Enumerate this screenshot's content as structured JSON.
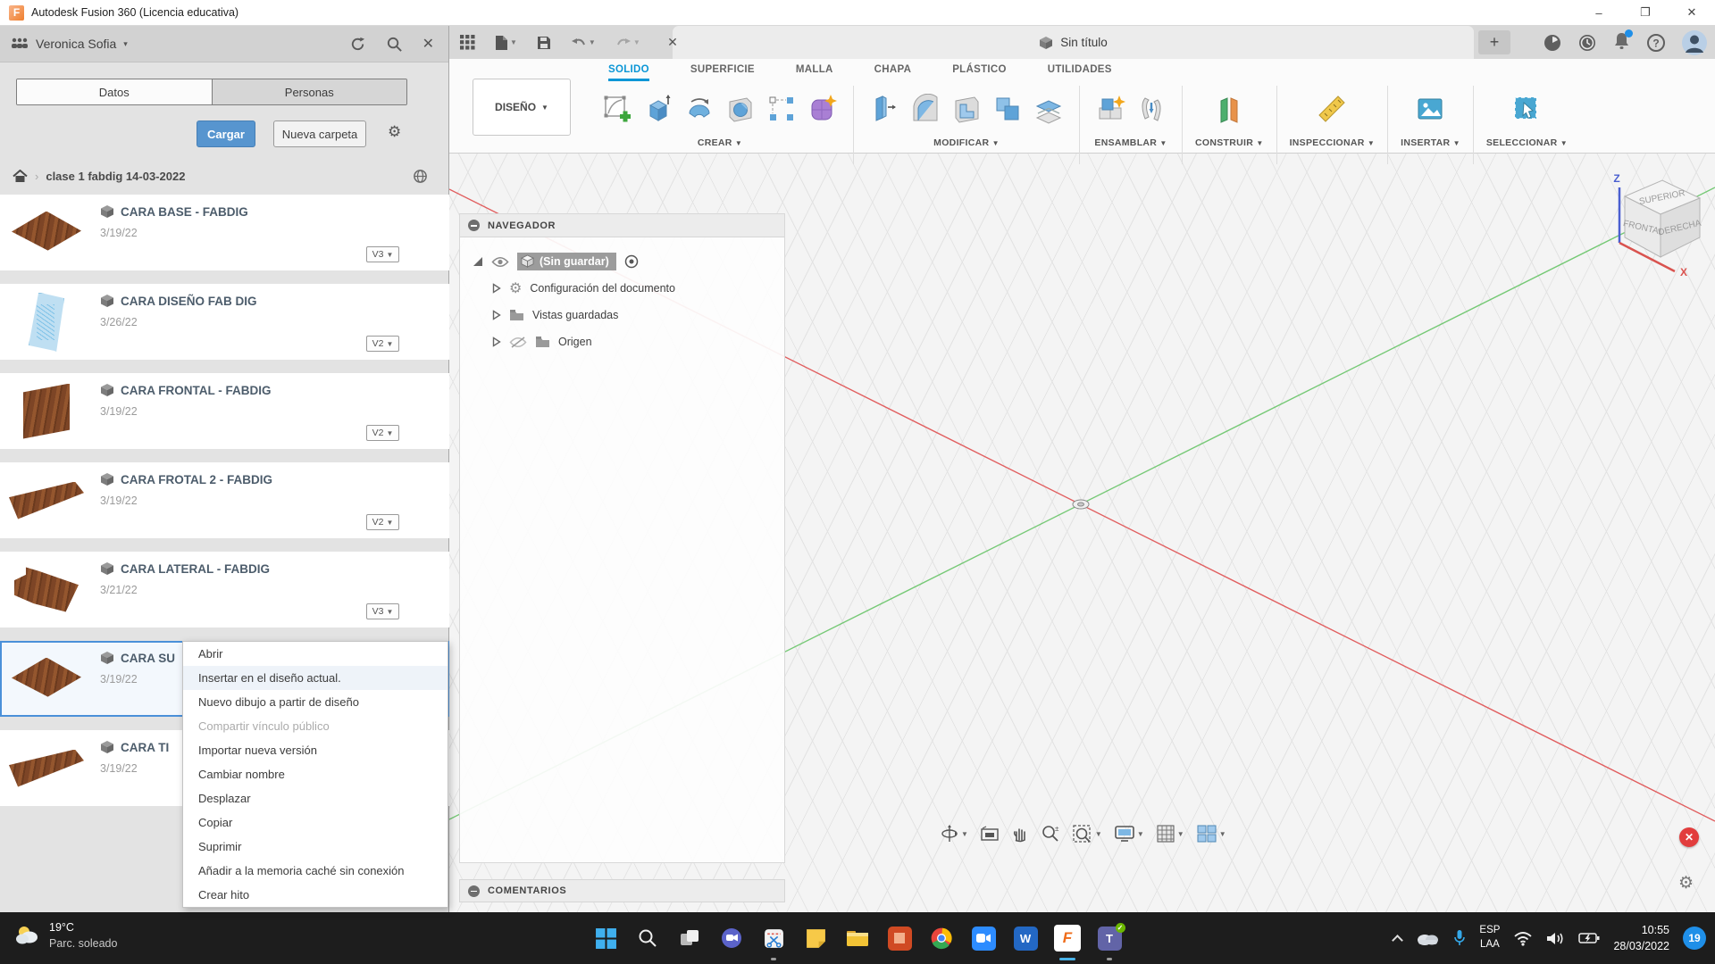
{
  "window": {
    "title": "Autodesk Fusion 360 (Licencia educativa)",
    "controls": [
      "minimize",
      "maximize",
      "close"
    ]
  },
  "data_panel": {
    "user": "Veronica Sofia",
    "header_icons": [
      "people-icon",
      "refresh-icon",
      "search-icon",
      "close-icon"
    ],
    "tabs": [
      {
        "label": "Datos",
        "state": "active"
      },
      {
        "label": "Personas"
      }
    ],
    "upload_button": "Cargar",
    "new_folder_button": "Nueva carpeta",
    "breadcrumb": "clase 1 fabdig 14-03-2022",
    "items": [
      {
        "name": "CARA BASE - FABDIG",
        "date": "3/19/22",
        "version": "V3",
        "thumb": "t-board-flat"
      },
      {
        "name": "CARA DISEÑO FAB DIG",
        "date": "3/26/22",
        "version": "V2",
        "thumb": "t-sketch"
      },
      {
        "name": "CARA FRONTAL - FABDIG",
        "date": "3/19/22",
        "version": "V2",
        "thumb": "t-board-front"
      },
      {
        "name": "CARA FROTAL 2 - FABDIG",
        "date": "3/19/22",
        "version": "V2",
        "thumb": "t-board-long"
      },
      {
        "name": "CARA LATERAL - FABDIG",
        "date": "3/21/22",
        "version": "V3",
        "thumb": "t-board-jagged"
      },
      {
        "name": "CARA SU",
        "date": "3/19/22",
        "version": null,
        "thumb": "t-board-flat",
        "state": "selected"
      },
      {
        "name": "CARA TI",
        "date": "3/19/22",
        "version": null,
        "thumb": "t-board-long"
      }
    ],
    "context_menu": [
      {
        "label": "Abrir"
      },
      {
        "label": "Insertar en el diseño actual.",
        "state": "highlight"
      },
      {
        "label": "Nuevo dibujo a partir de diseño"
      },
      {
        "label": "Compartir vínculo público",
        "state": "disabled"
      },
      {
        "label": "Importar nueva versión"
      },
      {
        "label": "Cambiar nombre"
      },
      {
        "label": "Desplazar"
      },
      {
        "label": "Copiar"
      },
      {
        "label": "Suprimir"
      },
      {
        "label": "Añadir a la memoria caché sin conexión"
      },
      {
        "label": "Crear hito"
      }
    ]
  },
  "qat_icons": [
    "app-grid",
    "file-new",
    "save",
    "undo",
    "redo"
  ],
  "document_tab": {
    "title": "Sin título"
  },
  "header_icons": [
    "job-status",
    "recent-clock",
    "notifications-bell",
    "help",
    "account-avatar"
  ],
  "ribbon": {
    "design_menu": "DISEÑO",
    "tabs": [
      {
        "label": "SOLIDO",
        "state": "active"
      },
      {
        "label": "SUPERFICIE"
      },
      {
        "label": "MALLA"
      },
      {
        "label": "CHAPA"
      },
      {
        "label": "PLÁSTICO"
      },
      {
        "label": "UTILIDADES"
      }
    ],
    "groups": {
      "crear": "CREAR",
      "modificar": "MODIFICAR",
      "ensamblar": "ENSAMBLAR",
      "construir": "CONSTRUIR",
      "inspeccionar": "INSPECCIONAR",
      "insertar": "INSERTAR",
      "seleccionar": "SELECCIONAR"
    }
  },
  "navigator": {
    "title": "NAVEGADOR",
    "root": "(Sin guardar)",
    "nodes": [
      "Configuración del documento",
      "Vistas guardadas",
      "Origen"
    ]
  },
  "comments": {
    "title": "COMENTARIOS"
  },
  "view_toolbar_icons": [
    "orbit",
    "look-at",
    "pan",
    "zoom",
    "fit",
    "display-settings",
    "grid-display",
    "viewports"
  ],
  "viewcube": {
    "top": "SUPERIOR",
    "front": "FRONTAL",
    "right": "DERECHA",
    "axis_x": "X",
    "axis_z": "Z"
  },
  "taskbar": {
    "temperature": "19°C",
    "condition": "Parc. soleado",
    "icons": [
      "start",
      "search",
      "task-view",
      "chat",
      "snipping-tool",
      "sticky-notes",
      "file-explorer",
      "powerpoint",
      "chrome",
      "zoom",
      "word",
      "fusion-360",
      "teams"
    ],
    "tray_icons": [
      "tray-expand",
      "onedrive",
      "microphone",
      "wifi",
      "volume",
      "battery"
    ],
    "language_line1": "ESP",
    "language_line2": "LAA",
    "time": "10:55",
    "date": "28/03/2022",
    "notification_count": "19"
  },
  "colors": {
    "accent_blue": "#0a96d6",
    "selection_blue": "#4a90d9",
    "axis_red": "#e04f50",
    "axis_green": "#69c569",
    "badge_blue": "#1f8fe8"
  }
}
